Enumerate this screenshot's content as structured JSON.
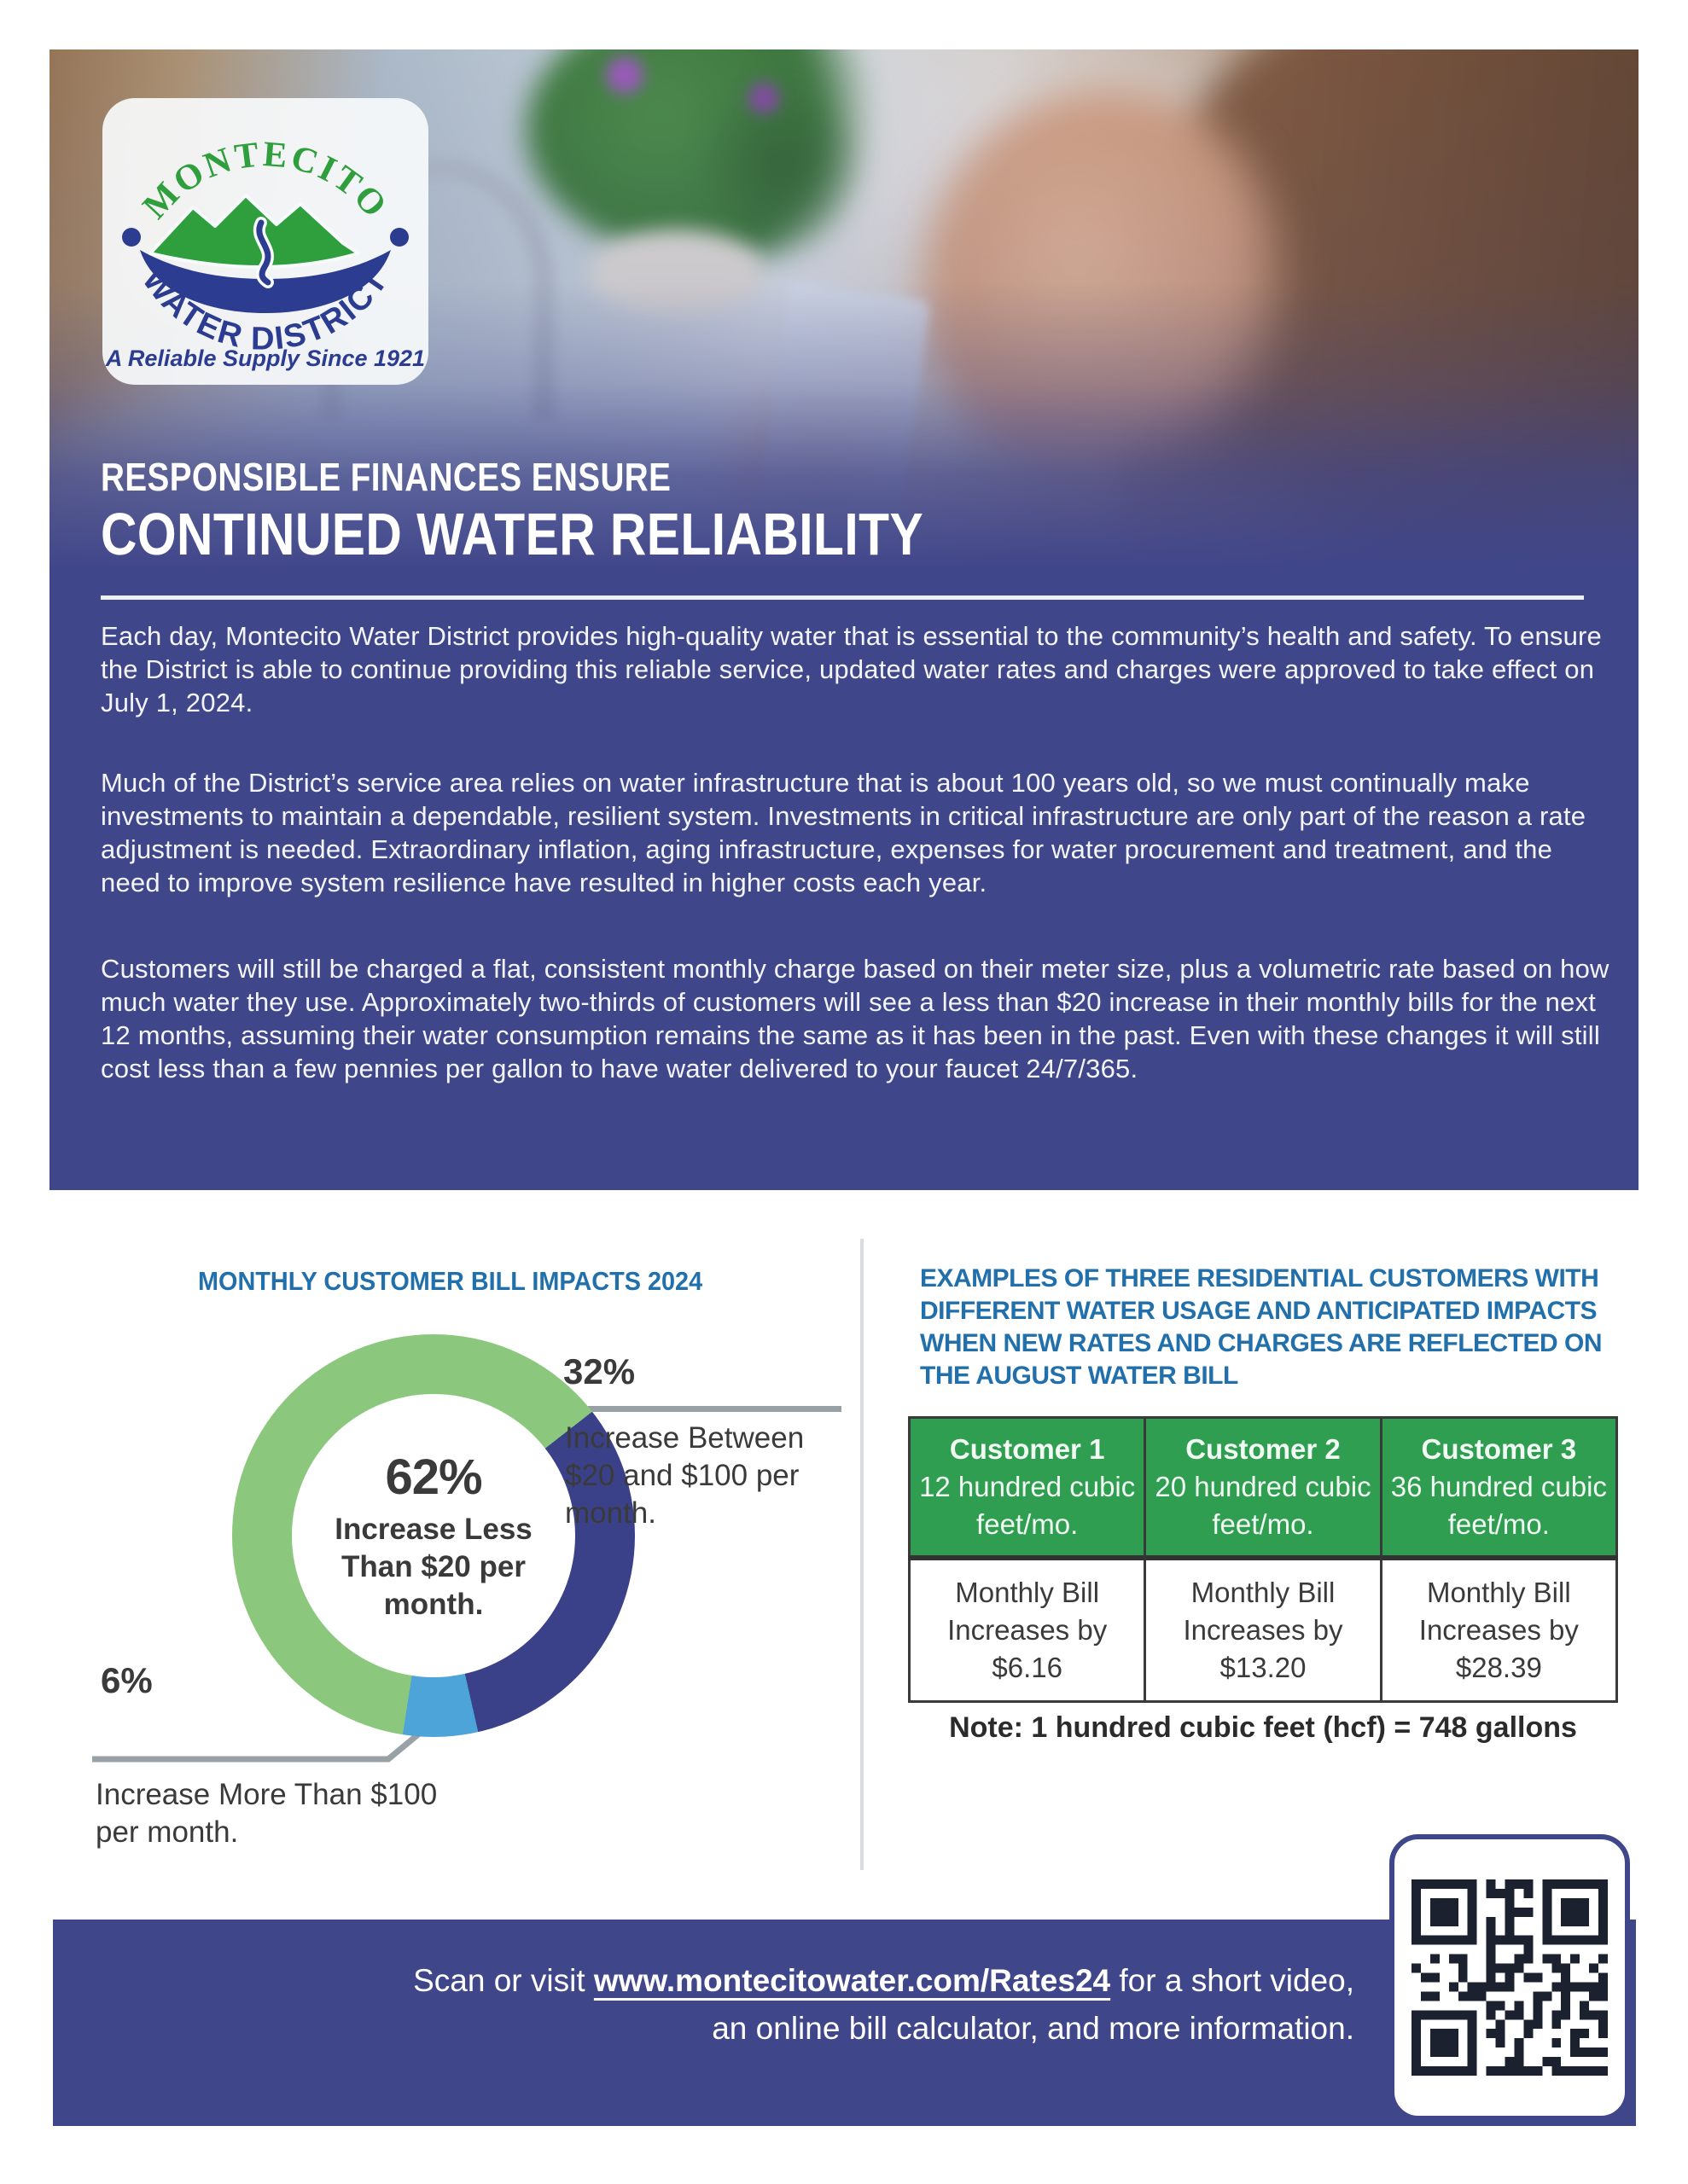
{
  "logo": {
    "arc_top": "MONTECITO",
    "arc_bottom": "WATER DISTRICT",
    "tagline": "A Reliable Supply Since 1921"
  },
  "hero": {
    "kicker": "RESPONSIBLE FINANCES ENSURE",
    "title": "CONTINUED WATER RELIABILITY",
    "paragraphs": [
      "Each day, Montecito Water District provides high-quality water that is essential to the community’s health and safety. To ensure the District is able to continue providing this reliable service, updated water rates and charges were approved to take effect on July 1, 2024.",
      "Much of the District’s service area relies on water infrastructure that is about 100 years old, so we must continually make investments to maintain a dependable, resilient system. Investments in critical infrastructure are only part of the reason a rate adjustment is needed. Extraordinary inflation, aging infrastructure, expenses for water procurement and treatment, and the need to improve system resilience have resulted in higher costs each year.",
      "Customers will still be charged a flat, consistent monthly charge based on their meter size, plus a volumetric rate based on how much water they use. Approximately two-thirds of customers will see a less than $20 increase in their monthly bills for the next 12 months, assuming their water consumption remains the same as it has been in the past. Even with these changes it will still cost less than a few pennies per gallon to have water delivered to your faucet 24/7/365."
    ]
  },
  "chart_section": {
    "title": "MONTHLY CUSTOMER BILL IMPACTS 2024"
  },
  "chart_data": {
    "type": "pie",
    "subtype": "donut",
    "title": "MONTHLY CUSTOMER BILL IMPACTS 2024",
    "start_deg": 52,
    "legend_position": "callouts",
    "slices": [
      {
        "pct_label": "32%",
        "value": 32,
        "label": "Increase Between $20 and $100 per month.",
        "color": "#3b4189"
      },
      {
        "pct_label": "6%",
        "value": 6,
        "label": "Increase More Than $100 per month.",
        "color": "#4da4d8"
      },
      {
        "pct_label": "62%",
        "value": 62,
        "label": "Increase Less Than $20 per month.",
        "color": "#8cc77e"
      }
    ]
  },
  "examples": {
    "heading": "EXAMPLES OF THREE RESIDENTIAL CUSTOMERS WITH DIFFERENT WATER USAGE AND ANTICIPATED IMPACTS WHEN NEW RATES AND CHARGES ARE REFLECTED ON THE AUGUST WATER BILL",
    "table": {
      "columns": [
        {
          "title": "Customer 1",
          "usage": "12 hundred cubic feet/mo.",
          "impact": "Monthly Bill Increases by $6.16"
        },
        {
          "title": "Customer 2",
          "usage": "20 hundred cubic feet/mo.",
          "impact": "Monthly Bill Increases by $13.20"
        },
        {
          "title": "Customer 3",
          "usage": "36 hundred cubic feet/mo.",
          "impact": "Monthly Bill Increases by $28.39"
        }
      ]
    },
    "note": "Note: 1 hundred cubic feet (hcf) = 748 gallons"
  },
  "footer": {
    "prefix": "Scan or visit ",
    "link": "www.montecitowater.com/Rates24",
    "suffix": " for a short video,",
    "line2": "an online bill calculator, and more information."
  },
  "colors": {
    "band_blue": "#40468a",
    "heading_blue": "#2270ab",
    "table_green": "#2f9e51",
    "donut_green": "#8cc77e",
    "donut_dark_blue": "#3b4189",
    "donut_light_blue": "#4da4d8",
    "logo_green": "#2f9f3e",
    "logo_blue": "#2c3d91",
    "connector_gray": "#98a2a6"
  }
}
